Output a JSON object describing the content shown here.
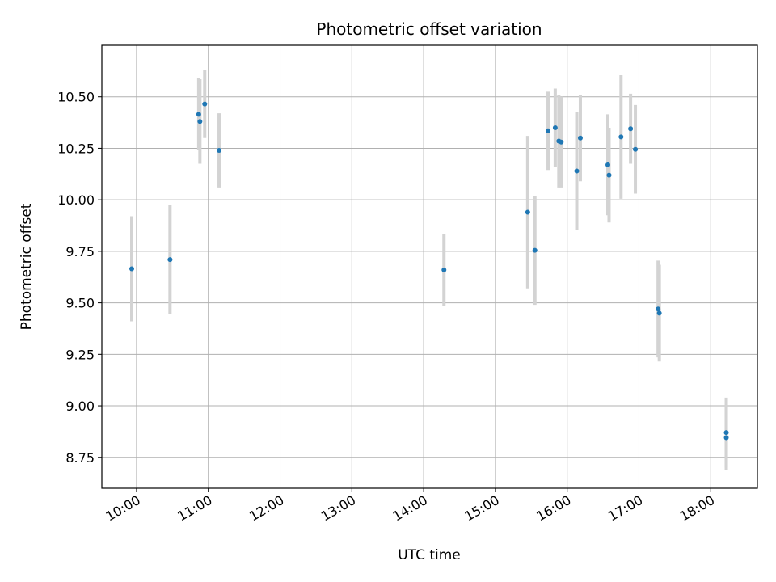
{
  "chart_data": {
    "type": "scatter",
    "title": "Photometric offset variation",
    "xlabel": "UTC time",
    "ylabel": "Photometric offset",
    "xlim": [
      "09:31",
      "18:39"
    ],
    "ylim": [
      8.6,
      10.75
    ],
    "x_ticks": [
      "10:00",
      "11:00",
      "12:00",
      "13:00",
      "14:00",
      "15:00",
      "16:00",
      "17:00",
      "18:00"
    ],
    "y_ticks": [
      "8.75",
      "9.00",
      "9.25",
      "9.50",
      "9.75",
      "10.00",
      "10.25",
      "10.50"
    ],
    "grid": true,
    "point_color": "#1f77b4",
    "errorbar_color": "#d3d3d3",
    "points": [
      {
        "time": "09:56",
        "y": 9.665,
        "err": 0.255
      },
      {
        "time": "10:28",
        "y": 9.71,
        "err": 0.265
      },
      {
        "time": "10:52",
        "y": 10.415,
        "err": 0.175
      },
      {
        "time": "10:53",
        "y": 10.38,
        "err": 0.205
      },
      {
        "time": "10:57",
        "y": 10.465,
        "err": 0.165
      },
      {
        "time": "11:09",
        "y": 10.24,
        "err": 0.18
      },
      {
        "time": "14:17",
        "y": 9.66,
        "err": 0.175
      },
      {
        "time": "15:27",
        "y": 9.94,
        "err": 0.37
      },
      {
        "time": "15:33",
        "y": 9.755,
        "err": 0.265
      },
      {
        "time": "15:44",
        "y": 10.335,
        "err": 0.19
      },
      {
        "time": "15:50",
        "y": 10.35,
        "err": 0.19
      },
      {
        "time": "15:53",
        "y": 10.285,
        "err": 0.225
      },
      {
        "time": "15:55",
        "y": 10.28,
        "err": 0.22
      },
      {
        "time": "16:08",
        "y": 10.14,
        "err": 0.285
      },
      {
        "time": "16:11",
        "y": 10.3,
        "err": 0.21
      },
      {
        "time": "16:34",
        "y": 10.17,
        "err": 0.245
      },
      {
        "time": "16:35",
        "y": 10.12,
        "err": 0.23
      },
      {
        "time": "16:45",
        "y": 10.305,
        "err": 0.3
      },
      {
        "time": "16:53",
        "y": 10.345,
        "err": 0.17
      },
      {
        "time": "16:57",
        "y": 10.245,
        "err": 0.215
      },
      {
        "time": "17:16",
        "y": 9.47,
        "err": 0.235
      },
      {
        "time": "17:17",
        "y": 9.45,
        "err": 0.235
      },
      {
        "time": "18:13",
        "y": 8.87,
        "err": 0.17
      },
      {
        "time": "18:13",
        "y": 8.845,
        "err": 0.155
      }
    ]
  }
}
